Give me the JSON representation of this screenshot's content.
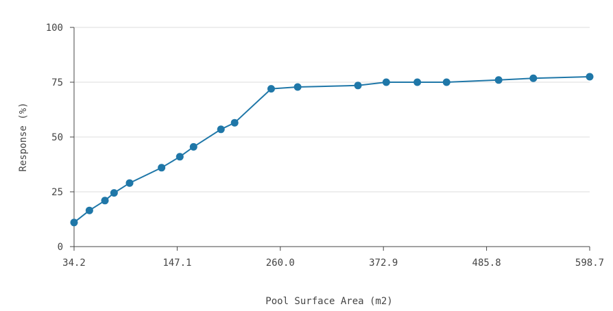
{
  "chart_data": {
    "type": "line",
    "xlabel": "Pool Surface Area (m2)",
    "ylabel": "Response (%)",
    "xlim": [
      34.2,
      598.7
    ],
    "ylim": [
      0,
      100
    ],
    "x_ticks": [
      "34.2",
      "147.1",
      "260.0",
      "372.9",
      "485.8",
      "598.7"
    ],
    "y_ticks": [
      "0",
      "25",
      "50",
      "75",
      "100"
    ],
    "grid": "horizontal",
    "line_color": "#1f77a8",
    "series": [
      {
        "x": [
          34.2,
          51.0,
          68.0,
          78.0,
          95.0,
          130.0,
          150.0,
          165.0,
          195.0,
          210.0,
          250.0,
          279.0,
          345.0,
          376.0,
          410.0,
          442.0,
          499.0,
          537.0,
          598.7
        ],
        "y": [
          11.0,
          16.5,
          21.0,
          24.5,
          29.0,
          36.0,
          41.0,
          45.5,
          53.5,
          56.5,
          72.0,
          72.8,
          73.5,
          75.0,
          75.0,
          75.0,
          76.0,
          76.8,
          77.5
        ]
      }
    ]
  }
}
